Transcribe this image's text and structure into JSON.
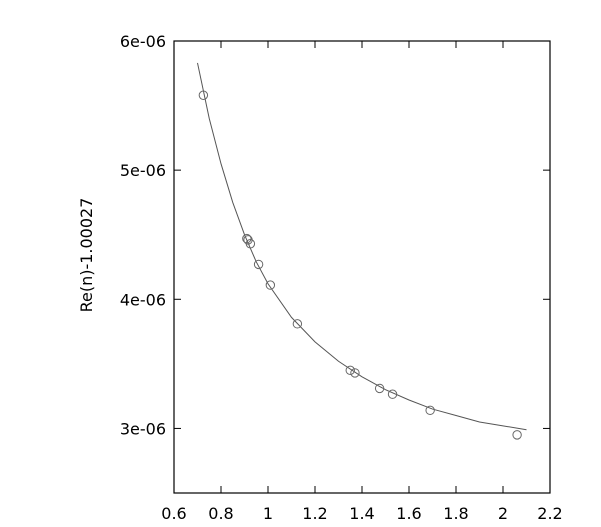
{
  "chart_data": {
    "type": "scatter",
    "title": "",
    "xlabel": "",
    "ylabel": "Re(n)-1.00027",
    "xlim": [
      0.6,
      2.2
    ],
    "ylim": [
      2.5e-06,
      6e-06
    ],
    "x_ticks": [
      {
        "value": 0.6,
        "label": "0.6"
      },
      {
        "value": 0.8,
        "label": "0.8"
      },
      {
        "value": 1.0,
        "label": "1"
      },
      {
        "value": 1.2,
        "label": "1.2"
      },
      {
        "value": 1.4,
        "label": "1.4"
      },
      {
        "value": 1.6,
        "label": "1.6"
      },
      {
        "value": 1.8,
        "label": "1.8"
      },
      {
        "value": 2.0,
        "label": "2"
      },
      {
        "value": 2.2,
        "label": "2.2"
      }
    ],
    "y_ticks": [
      {
        "value": 3e-06,
        "label": "3e-06"
      },
      {
        "value": 4e-06,
        "label": "4e-06"
      },
      {
        "value": 5e-06,
        "label": "5e-06"
      },
      {
        "value": 6e-06,
        "label": "6e-06"
      }
    ],
    "grid": false,
    "series": [
      {
        "type": "scatter",
        "marker": "open-circle",
        "points": [
          {
            "x": 0.725,
            "y": 5.58e-06
          },
          {
            "x": 0.91,
            "y": 4.47e-06
          },
          {
            "x": 0.915,
            "y": 4.46e-06
          },
          {
            "x": 0.925,
            "y": 4.43e-06
          },
          {
            "x": 0.96,
            "y": 4.27e-06
          },
          {
            "x": 1.01,
            "y": 4.11e-06
          },
          {
            "x": 1.125,
            "y": 3.81e-06
          },
          {
            "x": 1.35,
            "y": 3.45e-06
          },
          {
            "x": 1.37,
            "y": 3.43e-06
          },
          {
            "x": 1.475,
            "y": 3.31e-06
          },
          {
            "x": 1.53,
            "y": 3.265e-06
          },
          {
            "x": 1.69,
            "y": 3.14e-06
          },
          {
            "x": 2.06,
            "y": 2.95e-06
          }
        ]
      },
      {
        "type": "line",
        "color": "#555555",
        "points": [
          {
            "x": 0.7,
            "y": 5.83e-06
          },
          {
            "x": 0.75,
            "y": 5.4e-06
          },
          {
            "x": 0.8,
            "y": 5.05e-06
          },
          {
            "x": 0.85,
            "y": 4.75e-06
          },
          {
            "x": 0.9,
            "y": 4.5e-06
          },
          {
            "x": 0.95,
            "y": 4.29e-06
          },
          {
            "x": 1.0,
            "y": 4.12e-06
          },
          {
            "x": 1.1,
            "y": 3.86e-06
          },
          {
            "x": 1.2,
            "y": 3.67e-06
          },
          {
            "x": 1.3,
            "y": 3.52e-06
          },
          {
            "x": 1.4,
            "y": 3.4e-06
          },
          {
            "x": 1.5,
            "y": 3.3e-06
          },
          {
            "x": 1.6,
            "y": 3.22e-06
          },
          {
            "x": 1.7,
            "y": 3.15e-06
          },
          {
            "x": 1.8,
            "y": 3.1e-06
          },
          {
            "x": 1.9,
            "y": 3.05e-06
          },
          {
            "x": 2.0,
            "y": 3.02e-06
          },
          {
            "x": 2.1,
            "y": 2.99e-06
          }
        ]
      }
    ]
  }
}
